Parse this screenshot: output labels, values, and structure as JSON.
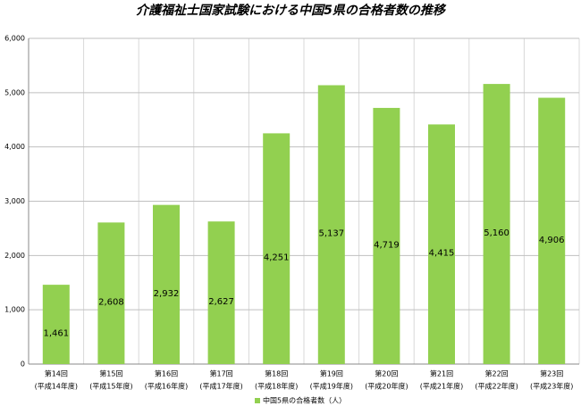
{
  "chart_data": {
    "type": "bar",
    "title": "介護福祉士国家試験における中国5県の合格者数の推移",
    "categories": [
      [
        "第14回",
        "(平成14年度)"
      ],
      [
        "第15回",
        "(平成15年度)"
      ],
      [
        "第16回",
        "(平成16年度)"
      ],
      [
        "第17回",
        "(平成17年度)"
      ],
      [
        "第18回",
        "(平成18年度)"
      ],
      [
        "第19回",
        "(平成19年度)"
      ],
      [
        "第20回",
        "(平成20年度)"
      ],
      [
        "第21回",
        "(平成21年度)"
      ],
      [
        "第22回",
        "(平成22年度)"
      ],
      [
        "第23回",
        "(平成23年度)"
      ]
    ],
    "series": [
      {
        "name": "中国5県の合格者数（人）",
        "color": "#92d050",
        "values": [
          1461,
          2608,
          2932,
          2627,
          4251,
          5137,
          4719,
          4415,
          5160,
          4906
        ],
        "value_labels": [
          "1,461",
          "2,608",
          "2,932",
          "2,627",
          "4,251",
          "5,137",
          "4,719",
          "4,415",
          "5,160",
          "4,906"
        ]
      }
    ],
    "ylim": [
      0,
      6000
    ],
    "yticks": [
      0,
      {
        "value": 1000,
        "label": "1,000"
      },
      {
        "value": 2000,
        "label": "2,000"
      },
      {
        "value": 3000,
        "label": "3,000"
      },
      {
        "value": 4000,
        "label": "4,000"
      },
      {
        "value": 5000,
        "label": "5,000"
      },
      {
        "value": 6000,
        "label": "6,000"
      }
    ],
    "grid": true,
    "legend": "bottom"
  }
}
